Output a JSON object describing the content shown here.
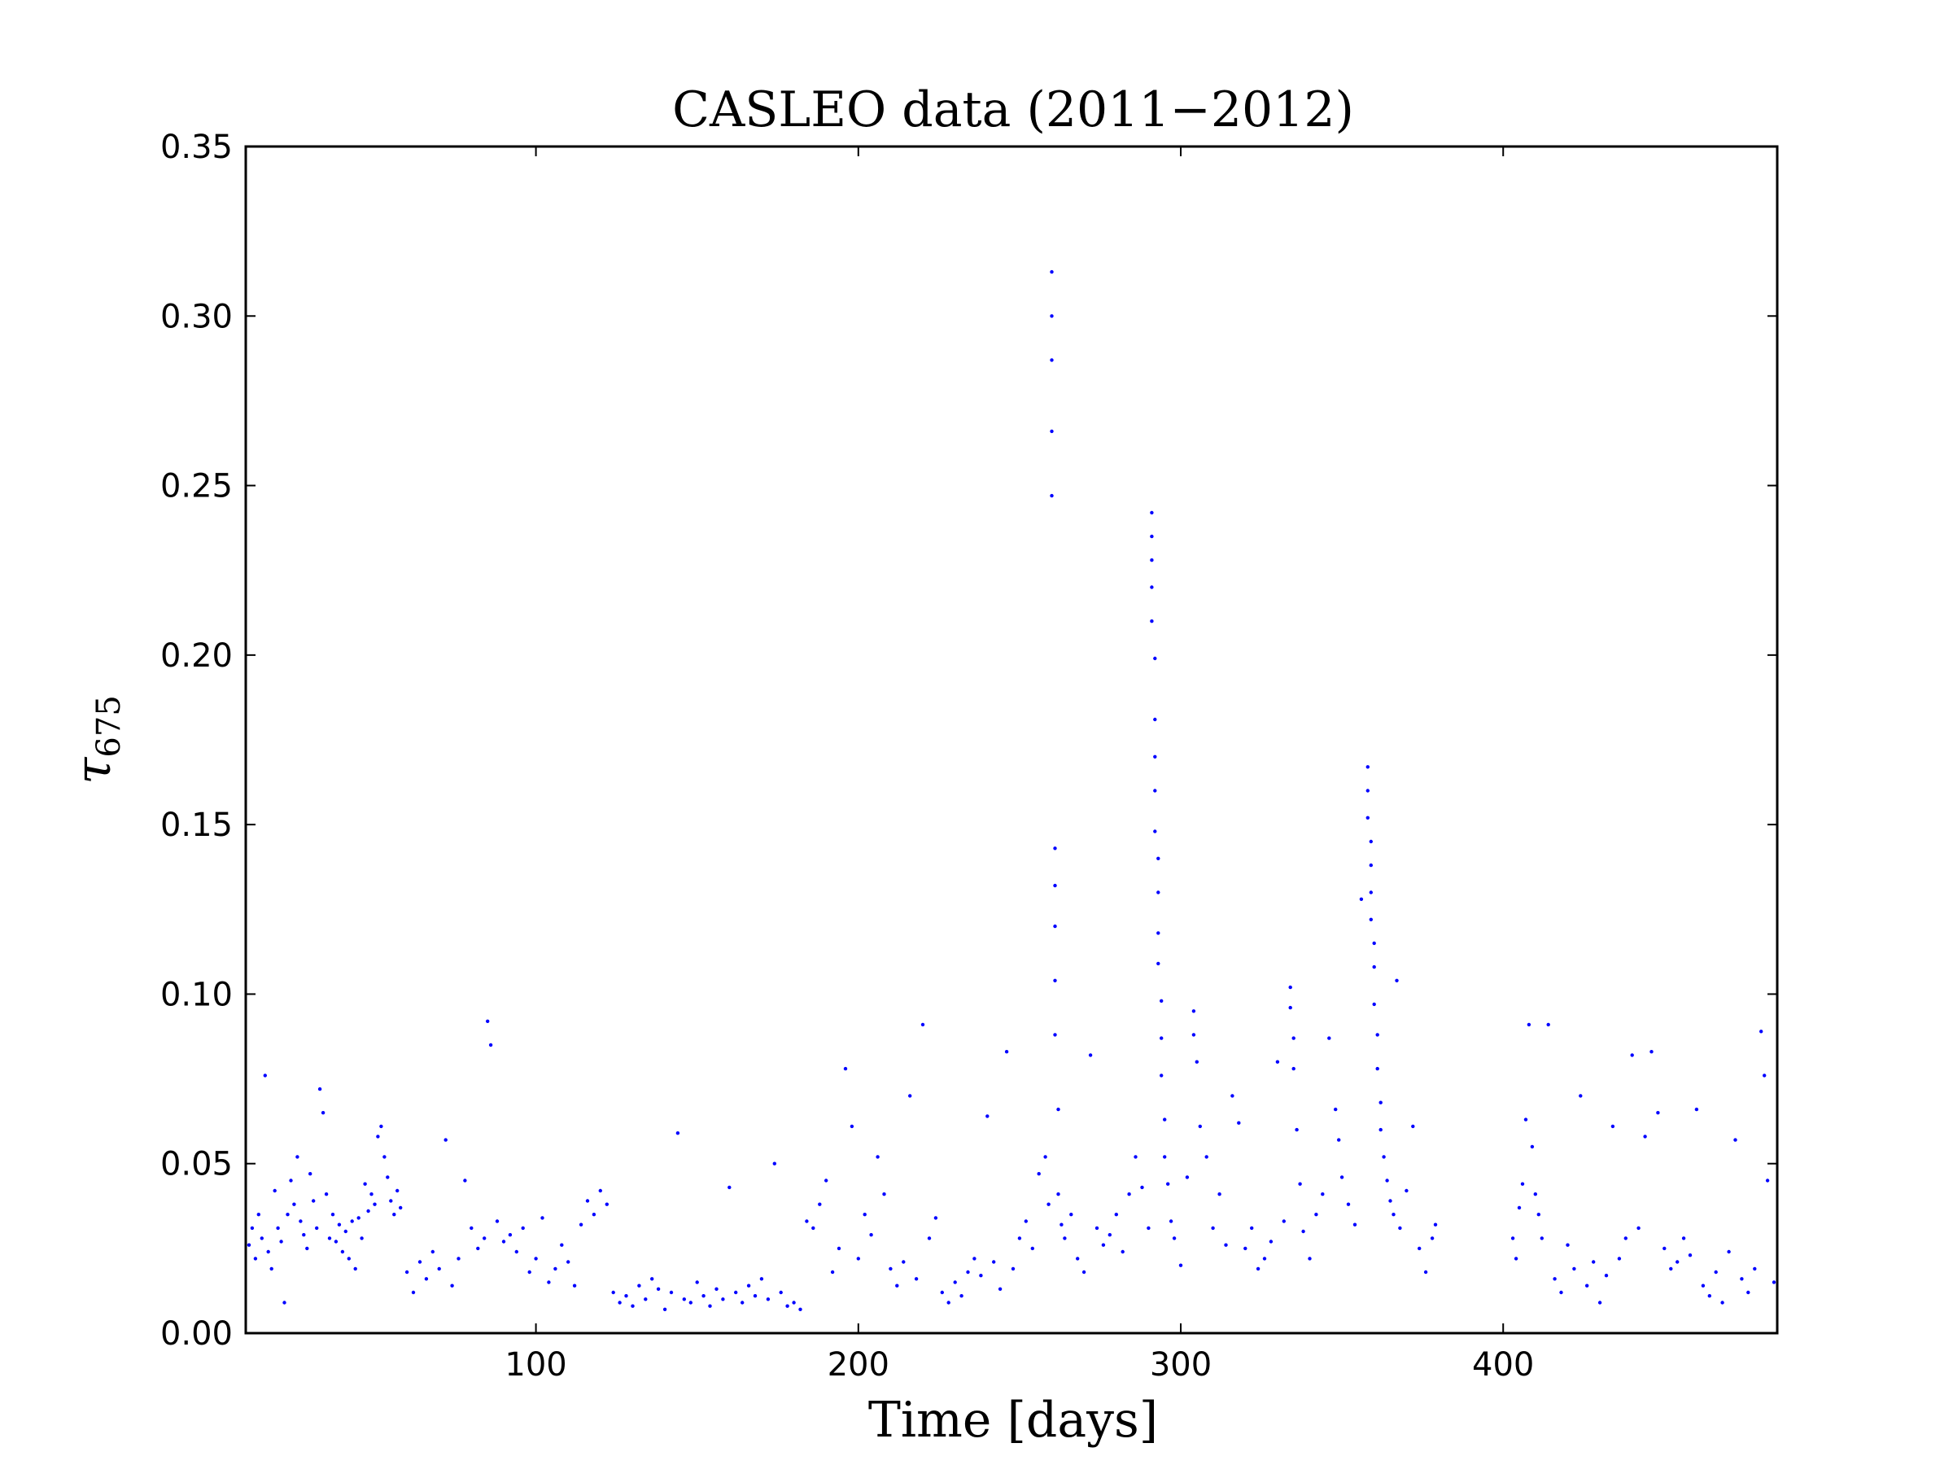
{
  "chart_data": {
    "type": "scatter",
    "title": "CASLEO data (2011−2012)",
    "xlabel": "Time [days]",
    "ylabel": {
      "symbol": "τ",
      "subscript": "675"
    },
    "xlim": [
      10,
      485
    ],
    "ylim": [
      0,
      0.35
    ],
    "xticks": [
      100,
      200,
      300,
      400
    ],
    "yticks": [
      0.0,
      0.05,
      0.1,
      0.15,
      0.2,
      0.25,
      0.3,
      0.35
    ],
    "ytick_labels": [
      "0.00",
      "0.05",
      "0.10",
      "0.15",
      "0.20",
      "0.25",
      "0.30",
      "0.35"
    ],
    "grid": false,
    "marker_color": "#0000ff",
    "series": [
      {
        "marker": "dot",
        "points": [
          [
            11,
            0.026
          ],
          [
            12,
            0.031
          ],
          [
            13,
            0.022
          ],
          [
            14,
            0.035
          ],
          [
            15,
            0.028
          ],
          [
            16,
            0.076
          ],
          [
            17,
            0.024
          ],
          [
            18,
            0.019
          ],
          [
            19,
            0.042
          ],
          [
            20,
            0.031
          ],
          [
            21,
            0.027
          ],
          [
            22,
            0.009
          ],
          [
            23,
            0.035
          ],
          [
            24,
            0.045
          ],
          [
            25,
            0.038
          ],
          [
            26,
            0.052
          ],
          [
            27,
            0.033
          ],
          [
            28,
            0.029
          ],
          [
            29,
            0.025
          ],
          [
            30,
            0.047
          ],
          [
            31,
            0.039
          ],
          [
            32,
            0.031
          ],
          [
            33,
            0.072
          ],
          [
            34,
            0.065
          ],
          [
            35,
            0.041
          ],
          [
            36,
            0.028
          ],
          [
            37,
            0.035
          ],
          [
            38,
            0.027
          ],
          [
            39,
            0.032
          ],
          [
            40,
            0.024
          ],
          [
            41,
            0.03
          ],
          [
            42,
            0.022
          ],
          [
            43,
            0.033
          ],
          [
            44,
            0.019
          ],
          [
            45,
            0.034
          ],
          [
            46,
            0.028
          ],
          [
            47,
            0.044
          ],
          [
            48,
            0.036
          ],
          [
            49,
            0.041
          ],
          [
            50,
            0.038
          ],
          [
            51,
            0.058
          ],
          [
            52,
            0.061
          ],
          [
            53,
            0.052
          ],
          [
            54,
            0.046
          ],
          [
            55,
            0.039
          ],
          [
            56,
            0.035
          ],
          [
            57,
            0.042
          ],
          [
            58,
            0.037
          ],
          [
            60,
            0.018
          ],
          [
            62,
            0.012
          ],
          [
            64,
            0.021
          ],
          [
            66,
            0.016
          ],
          [
            68,
            0.024
          ],
          [
            70,
            0.019
          ],
          [
            72,
            0.057
          ],
          [
            74,
            0.014
          ],
          [
            76,
            0.022
          ],
          [
            78,
            0.045
          ],
          [
            80,
            0.031
          ],
          [
            82,
            0.025
          ],
          [
            84,
            0.028
          ],
          [
            85,
            0.092
          ],
          [
            86,
            0.085
          ],
          [
            88,
            0.033
          ],
          [
            90,
            0.027
          ],
          [
            92,
            0.029
          ],
          [
            94,
            0.024
          ],
          [
            96,
            0.031
          ],
          [
            98,
            0.018
          ],
          [
            100,
            0.022
          ],
          [
            102,
            0.034
          ],
          [
            104,
            0.015
          ],
          [
            106,
            0.019
          ],
          [
            108,
            0.026
          ],
          [
            110,
            0.021
          ],
          [
            112,
            0.014
          ],
          [
            114,
            0.032
          ],
          [
            116,
            0.039
          ],
          [
            118,
            0.035
          ],
          [
            120,
            0.042
          ],
          [
            122,
            0.038
          ],
          [
            124,
            0.012
          ],
          [
            126,
            0.009
          ],
          [
            128,
            0.011
          ],
          [
            130,
            0.008
          ],
          [
            132,
            0.014
          ],
          [
            134,
            0.01
          ],
          [
            136,
            0.016
          ],
          [
            138,
            0.013
          ],
          [
            140,
            0.007
          ],
          [
            142,
            0.012
          ],
          [
            144,
            0.059
          ],
          [
            146,
            0.01
          ],
          [
            148,
            0.009
          ],
          [
            150,
            0.015
          ],
          [
            152,
            0.011
          ],
          [
            154,
            0.008
          ],
          [
            156,
            0.013
          ],
          [
            158,
            0.01
          ],
          [
            160,
            0.043
          ],
          [
            162,
            0.012
          ],
          [
            164,
            0.009
          ],
          [
            166,
            0.014
          ],
          [
            168,
            0.011
          ],
          [
            170,
            0.016
          ],
          [
            172,
            0.01
          ],
          [
            174,
            0.05
          ],
          [
            176,
            0.012
          ],
          [
            178,
            0.008
          ],
          [
            180,
            0.009
          ],
          [
            182,
            0.007
          ],
          [
            184,
            0.033
          ],
          [
            186,
            0.031
          ],
          [
            188,
            0.038
          ],
          [
            190,
            0.045
          ],
          [
            192,
            0.018
          ],
          [
            194,
            0.025
          ],
          [
            196,
            0.078
          ],
          [
            198,
            0.061
          ],
          [
            200,
            0.022
          ],
          [
            202,
            0.035
          ],
          [
            204,
            0.029
          ],
          [
            206,
            0.052
          ],
          [
            208,
            0.041
          ],
          [
            210,
            0.019
          ],
          [
            212,
            0.014
          ],
          [
            214,
            0.021
          ],
          [
            216,
            0.07
          ],
          [
            218,
            0.016
          ],
          [
            220,
            0.091
          ],
          [
            222,
            0.028
          ],
          [
            224,
            0.034
          ],
          [
            226,
            0.012
          ],
          [
            228,
            0.009
          ],
          [
            230,
            0.015
          ],
          [
            232,
            0.011
          ],
          [
            234,
            0.018
          ],
          [
            236,
            0.022
          ],
          [
            238,
            0.017
          ],
          [
            240,
            0.064
          ],
          [
            242,
            0.021
          ],
          [
            244,
            0.013
          ],
          [
            246,
            0.083
          ],
          [
            248,
            0.019
          ],
          [
            250,
            0.028
          ],
          [
            252,
            0.033
          ],
          [
            254,
            0.025
          ],
          [
            256,
            0.047
          ],
          [
            258,
            0.052
          ],
          [
            259,
            0.038
          ],
          [
            260,
            0.313
          ],
          [
            260,
            0.3
          ],
          [
            260,
            0.287
          ],
          [
            260,
            0.266
          ],
          [
            260,
            0.247
          ],
          [
            261,
            0.143
          ],
          [
            261,
            0.132
          ],
          [
            261,
            0.12
          ],
          [
            261,
            0.104
          ],
          [
            261,
            0.088
          ],
          [
            262,
            0.066
          ],
          [
            262,
            0.041
          ],
          [
            263,
            0.032
          ],
          [
            264,
            0.028
          ],
          [
            266,
            0.035
          ],
          [
            268,
            0.022
          ],
          [
            270,
            0.018
          ],
          [
            272,
            0.082
          ],
          [
            274,
            0.031
          ],
          [
            276,
            0.026
          ],
          [
            278,
            0.029
          ],
          [
            280,
            0.035
          ],
          [
            282,
            0.024
          ],
          [
            284,
            0.041
          ],
          [
            286,
            0.052
          ],
          [
            288,
            0.043
          ],
          [
            290,
            0.031
          ],
          [
            291,
            0.242
          ],
          [
            291,
            0.235
          ],
          [
            291,
            0.228
          ],
          [
            291,
            0.22
          ],
          [
            291,
            0.21
          ],
          [
            292,
            0.199
          ],
          [
            292,
            0.181
          ],
          [
            292,
            0.17
          ],
          [
            292,
            0.16
          ],
          [
            292,
            0.148
          ],
          [
            293,
            0.14
          ],
          [
            293,
            0.13
          ],
          [
            293,
            0.118
          ],
          [
            293,
            0.109
          ],
          [
            294,
            0.098
          ],
          [
            294,
            0.087
          ],
          [
            294,
            0.076
          ],
          [
            295,
            0.063
          ],
          [
            295,
            0.052
          ],
          [
            296,
            0.044
          ],
          [
            297,
            0.033
          ],
          [
            298,
            0.028
          ],
          [
            300,
            0.02
          ],
          [
            302,
            0.046
          ],
          [
            304,
            0.095
          ],
          [
            304,
            0.088
          ],
          [
            305,
            0.08
          ],
          [
            306,
            0.061
          ],
          [
            308,
            0.052
          ],
          [
            310,
            0.031
          ],
          [
            312,
            0.041
          ],
          [
            314,
            0.026
          ],
          [
            316,
            0.07
          ],
          [
            318,
            0.062
          ],
          [
            320,
            0.025
          ],
          [
            322,
            0.031
          ],
          [
            324,
            0.019
          ],
          [
            326,
            0.022
          ],
          [
            328,
            0.027
          ],
          [
            330,
            0.08
          ],
          [
            332,
            0.033
          ],
          [
            334,
            0.102
          ],
          [
            334,
            0.096
          ],
          [
            335,
            0.087
          ],
          [
            335,
            0.078
          ],
          [
            336,
            0.06
          ],
          [
            337,
            0.044
          ],
          [
            338,
            0.03
          ],
          [
            340,
            0.022
          ],
          [
            342,
            0.035
          ],
          [
            344,
            0.041
          ],
          [
            346,
            0.087
          ],
          [
            348,
            0.066
          ],
          [
            349,
            0.057
          ],
          [
            350,
            0.046
          ],
          [
            352,
            0.038
          ],
          [
            354,
            0.032
          ],
          [
            356,
            0.128
          ],
          [
            358,
            0.167
          ],
          [
            358,
            0.16
          ],
          [
            358,
            0.152
          ],
          [
            359,
            0.145
          ],
          [
            359,
            0.138
          ],
          [
            359,
            0.13
          ],
          [
            359,
            0.122
          ],
          [
            360,
            0.115
          ],
          [
            360,
            0.108
          ],
          [
            360,
            0.097
          ],
          [
            361,
            0.088
          ],
          [
            361,
            0.078
          ],
          [
            362,
            0.068
          ],
          [
            362,
            0.06
          ],
          [
            363,
            0.052
          ],
          [
            364,
            0.045
          ],
          [
            365,
            0.039
          ],
          [
            366,
            0.035
          ],
          [
            367,
            0.104
          ],
          [
            368,
            0.031
          ],
          [
            370,
            0.042
          ],
          [
            372,
            0.061
          ],
          [
            374,
            0.025
          ],
          [
            376,
            0.018
          ],
          [
            378,
            0.028
          ],
          [
            379,
            0.032
          ],
          [
            403,
            0.028
          ],
          [
            404,
            0.022
          ],
          [
            405,
            0.037
          ],
          [
            406,
            0.044
          ],
          [
            407,
            0.063
          ],
          [
            408,
            0.091
          ],
          [
            409,
            0.055
          ],
          [
            410,
            0.041
          ],
          [
            411,
            0.035
          ],
          [
            412,
            0.028
          ],
          [
            414,
            0.091
          ],
          [
            416,
            0.016
          ],
          [
            418,
            0.012
          ],
          [
            420,
            0.026
          ],
          [
            422,
            0.019
          ],
          [
            424,
            0.07
          ],
          [
            426,
            0.014
          ],
          [
            428,
            0.021
          ],
          [
            430,
            0.009
          ],
          [
            432,
            0.017
          ],
          [
            434,
            0.061
          ],
          [
            436,
            0.022
          ],
          [
            438,
            0.028
          ],
          [
            440,
            0.082
          ],
          [
            442,
            0.031
          ],
          [
            444,
            0.058
          ],
          [
            446,
            0.083
          ],
          [
            448,
            0.065
          ],
          [
            450,
            0.025
          ],
          [
            452,
            0.019
          ],
          [
            454,
            0.021
          ],
          [
            456,
            0.028
          ],
          [
            458,
            0.023
          ],
          [
            460,
            0.066
          ],
          [
            462,
            0.014
          ],
          [
            464,
            0.011
          ],
          [
            466,
            0.018
          ],
          [
            468,
            0.009
          ],
          [
            470,
            0.024
          ],
          [
            472,
            0.057
          ],
          [
            474,
            0.016
          ],
          [
            476,
            0.012
          ],
          [
            478,
            0.019
          ],
          [
            480,
            0.089
          ],
          [
            481,
            0.076
          ],
          [
            482,
            0.045
          ],
          [
            484,
            0.015
          ]
        ]
      }
    ]
  }
}
